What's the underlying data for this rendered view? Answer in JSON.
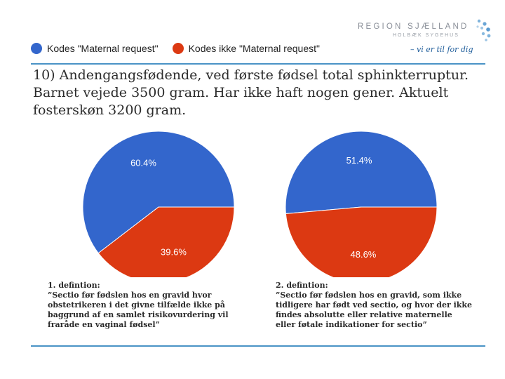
{
  "logo": {
    "title": "REGION SJÆLLAND",
    "subtitle": "HOLBÆK SYGEHUS",
    "tagline": "– vi er til for dig"
  },
  "legend": [
    {
      "label": "Kodes \"Maternal request\"",
      "color": "#3366cc"
    },
    {
      "label": "Kodes ikke \"Maternal request\"",
      "color": "#dc3912"
    }
  ],
  "case_text": "10) Andengangsfødende, ved første fødsel total sphinkterruptur. Barnet vejede 3500 gram. Har ikke haft nogen gener. Aktuelt fosterskøn 3200 gram.",
  "chart_data": [
    {
      "type": "pie",
      "categories": [
        "Kodes \"Maternal request\"",
        "Kodes ikke \"Maternal request\""
      ],
      "values": [
        60.4,
        39.6
      ],
      "labels": [
        "60.4%",
        "39.6%"
      ],
      "colors": [
        "#3366cc",
        "#dc3912"
      ],
      "title": ""
    },
    {
      "type": "pie",
      "categories": [
        "Kodes \"Maternal request\"",
        "Kodes ikke \"Maternal request\""
      ],
      "values": [
        51.4,
        48.6
      ],
      "labels": [
        "51.4%",
        "48.6%"
      ],
      "colors": [
        "#3366cc",
        "#dc3912"
      ],
      "title": ""
    }
  ],
  "definitions": [
    {
      "heading": "1. defintion:",
      "lines": [
        "”Sectio før fødslen hos en gravid hvor",
        "obstetrikeren i det givne tilfælde ikke på",
        "baggrund af en samlet risikovurdering vil",
        "fraråde en vaginal fødsel”"
      ]
    },
    {
      "heading": "2. defintion:",
      "lines": [
        "”Sectio før fødslen hos en gravid, som ikke",
        "tidligere har født ved sectio, og hvor der ikke",
        "findes absolutte eller relative maternelle",
        "eller føtale indikationer for sectio”"
      ]
    }
  ]
}
